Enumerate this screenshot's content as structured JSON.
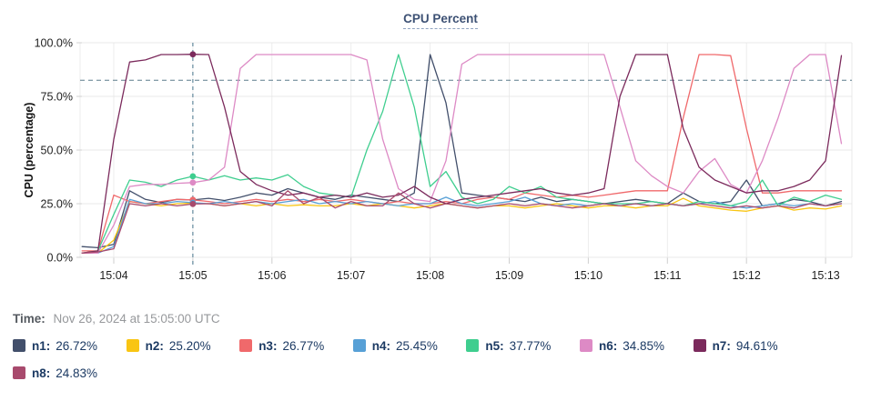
{
  "title": "CPU Percent",
  "time_label": {
    "prefix": "Time:",
    "value": "Nov 26, 2024 at 15:05:00 UTC"
  },
  "legend": {
    "items": [
      {
        "label": "n1:",
        "value": "26.72%",
        "color": "#424F6B"
      },
      {
        "label": "n2:",
        "value": "25.20%",
        "color": "#F9C513"
      },
      {
        "label": "n3:",
        "value": "26.77%",
        "color": "#F0696B"
      },
      {
        "label": "n4:",
        "value": "25.45%",
        "color": "#57A0D6"
      },
      {
        "label": "n5:",
        "value": "37.77%",
        "color": "#3FCE8F"
      },
      {
        "label": "n6:",
        "value": "34.85%",
        "color": "#DD8AC5"
      },
      {
        "label": "n7:",
        "value": "94.61%",
        "color": "#7B2A5C"
      },
      {
        "label": "n8:",
        "value": "24.83%",
        "color": "#A84A6D"
      }
    ]
  },
  "chart_data": {
    "type": "line",
    "title": "CPU Percent",
    "ylabel": "CPU (percentage)",
    "xlabel": "",
    "ylim": [
      0,
      100
    ],
    "grid": true,
    "legend_position": "bottom",
    "y_ticks": [
      {
        "value": 100,
        "label": "100.0%"
      },
      {
        "value": 75,
        "label": "75.0%"
      },
      {
        "value": 50,
        "label": "50.0%"
      },
      {
        "value": 25,
        "label": "25.0%"
      },
      {
        "value": 0,
        "label": "0.0%"
      }
    ],
    "x_ticks": [
      {
        "minute": 4,
        "label": "15:04"
      },
      {
        "minute": 5,
        "label": "15:05"
      },
      {
        "minute": 6,
        "label": "15:06"
      },
      {
        "minute": 7,
        "label": "15:07"
      },
      {
        "minute": 8,
        "label": "15:08"
      },
      {
        "minute": 9,
        "label": "15:09"
      },
      {
        "minute": 10,
        "label": "15:10"
      },
      {
        "minute": 11,
        "label": "15:11"
      },
      {
        "minute": 12,
        "label": "15:12"
      },
      {
        "minute": 13,
        "label": "15:13"
      }
    ],
    "x_unit": "minutes after 15:00 UTC",
    "xlim": [
      3.6,
      13.2
    ],
    "threshold_line": {
      "value": 82.5,
      "style": "dashed",
      "color": "#5d7d8c"
    },
    "crosshair": {
      "x": 5.0,
      "style": "dashed",
      "color": "#46748c"
    },
    "markers": {
      "x": 5.0,
      "values": [
        26.72,
        25.2,
        26.77,
        25.45,
        37.77,
        34.85,
        94.61,
        24.83
      ]
    },
    "x": [
      3.6,
      3.8,
      4.0,
      4.2,
      4.4,
      4.6,
      4.8,
      5.0,
      5.2,
      5.4,
      5.6,
      5.8,
      6.0,
      6.2,
      6.4,
      6.6,
      6.8,
      7.0,
      7.2,
      7.4,
      7.6,
      7.8,
      8.0,
      8.2,
      8.4,
      8.6,
      8.8,
      9.0,
      9.2,
      9.4,
      9.6,
      9.8,
      10.0,
      10.2,
      10.4,
      10.6,
      10.8,
      11.0,
      11.2,
      11.4,
      11.6,
      11.8,
      12.0,
      12.2,
      12.4,
      12.6,
      12.8,
      13.0,
      13.2
    ],
    "series": [
      {
        "name": "n1",
        "color": "#424F6B",
        "values": [
          5,
          4.5,
          6,
          31,
          27,
          25.5,
          27,
          26.72,
          27.5,
          26.5,
          28,
          30,
          29,
          32,
          30,
          28,
          27,
          29,
          28,
          27,
          26,
          30,
          94.5,
          72,
          30,
          29,
          28,
          27,
          26,
          28,
          26,
          27,
          26,
          25,
          26,
          27,
          26,
          25,
          30,
          26,
          25,
          26,
          36,
          24,
          25,
          27,
          26,
          24,
          26
        ]
      },
      {
        "name": "n2",
        "color": "#F9C513",
        "values": [
          2,
          2,
          8,
          26,
          25,
          24,
          25,
          25.2,
          25,
          24,
          25,
          24,
          25,
          24,
          24.5,
          24,
          24,
          25,
          24,
          25,
          24,
          23,
          24,
          25,
          24,
          23,
          24,
          24,
          23,
          24,
          25,
          24,
          23,
          24,
          24,
          23,
          24,
          24,
          27.5,
          24,
          23,
          22,
          21.5,
          23,
          24,
          22,
          23,
          22.5,
          24
        ]
      },
      {
        "name": "n3",
        "color": "#F0696B",
        "values": [
          3,
          3,
          29,
          26,
          25,
          26,
          27,
          26.77,
          26,
          25,
          26,
          27,
          26,
          27,
          26,
          27,
          26,
          27,
          26,
          25,
          26,
          25,
          25,
          26,
          25,
          27,
          28,
          27,
          30,
          29,
          28,
          29,
          28,
          29,
          30,
          31,
          31,
          31,
          65,
          94.5,
          94.5,
          94,
          60,
          30,
          30,
          31,
          31,
          31,
          31
        ]
      },
      {
        "name": "n4",
        "color": "#57A0D6",
        "values": [
          2,
          2,
          5,
          27,
          25,
          25,
          26,
          25.45,
          25,
          26,
          25,
          26,
          25,
          26,
          27,
          25,
          26,
          25,
          26,
          25,
          24,
          25,
          25,
          28,
          25,
          24,
          25,
          26,
          28,
          25,
          24,
          25,
          24,
          25,
          24,
          25,
          24,
          25,
          24,
          25,
          26,
          24,
          23,
          24,
          25,
          24,
          25,
          24,
          25
        ]
      },
      {
        "name": "n5",
        "color": "#3FCE8F",
        "values": [
          2,
          3,
          20,
          36,
          35,
          33,
          36,
          37.77,
          36,
          38,
          36,
          37,
          36,
          38.5,
          33,
          30,
          29,
          28,
          50,
          68,
          94.5,
          70,
          33,
          40,
          28,
          25,
          27,
          33,
          30,
          33,
          28,
          27,
          26,
          25,
          25,
          25,
          26,
          25,
          24,
          26,
          25,
          24,
          26,
          36,
          24,
          28,
          26,
          29,
          27
        ]
      },
      {
        "name": "n6",
        "color": "#DD8AC5",
        "values": [
          2,
          2,
          15,
          33,
          34,
          34,
          34.5,
          34.85,
          36,
          42,
          88,
          94.5,
          94.5,
          94.5,
          94.5,
          94.5,
          94.5,
          94.5,
          92,
          55,
          32,
          27,
          26,
          45,
          90,
          94.5,
          94.5,
          94.5,
          94.5,
          94.5,
          94.5,
          94.5,
          94.5,
          94.5,
          70,
          45,
          38,
          33,
          30,
          40,
          46,
          34,
          30,
          45,
          65,
          88,
          94.5,
          94.5,
          53
        ]
      },
      {
        "name": "n7",
        "color": "#7B2A5C",
        "values": [
          2,
          3,
          55,
          91,
          92,
          94.5,
          94.5,
          94.61,
          94.5,
          70,
          40,
          34,
          31,
          29,
          30,
          28,
          29,
          28,
          30,
          28,
          29,
          33,
          28,
          25,
          27,
          28,
          29,
          30,
          31,
          32,
          30,
          29,
          30,
          32,
          75,
          94.5,
          94.5,
          94.5,
          60,
          42,
          36,
          33,
          30,
          31,
          31,
          33,
          36,
          45,
          94
        ]
      },
      {
        "name": "n8",
        "color": "#A84A6D",
        "values": [
          2,
          2.5,
          4,
          25,
          24,
          25,
          24,
          24.83,
          25,
          24,
          25,
          26,
          24,
          31,
          25,
          28,
          23,
          26,
          24,
          24,
          30,
          25,
          23,
          25,
          24,
          23,
          24,
          25,
          24,
          25,
          24,
          23,
          24,
          25,
          24,
          25,
          24,
          25,
          24,
          25,
          24,
          23,
          24,
          23,
          24,
          23,
          25,
          24,
          25
        ]
      }
    ]
  }
}
